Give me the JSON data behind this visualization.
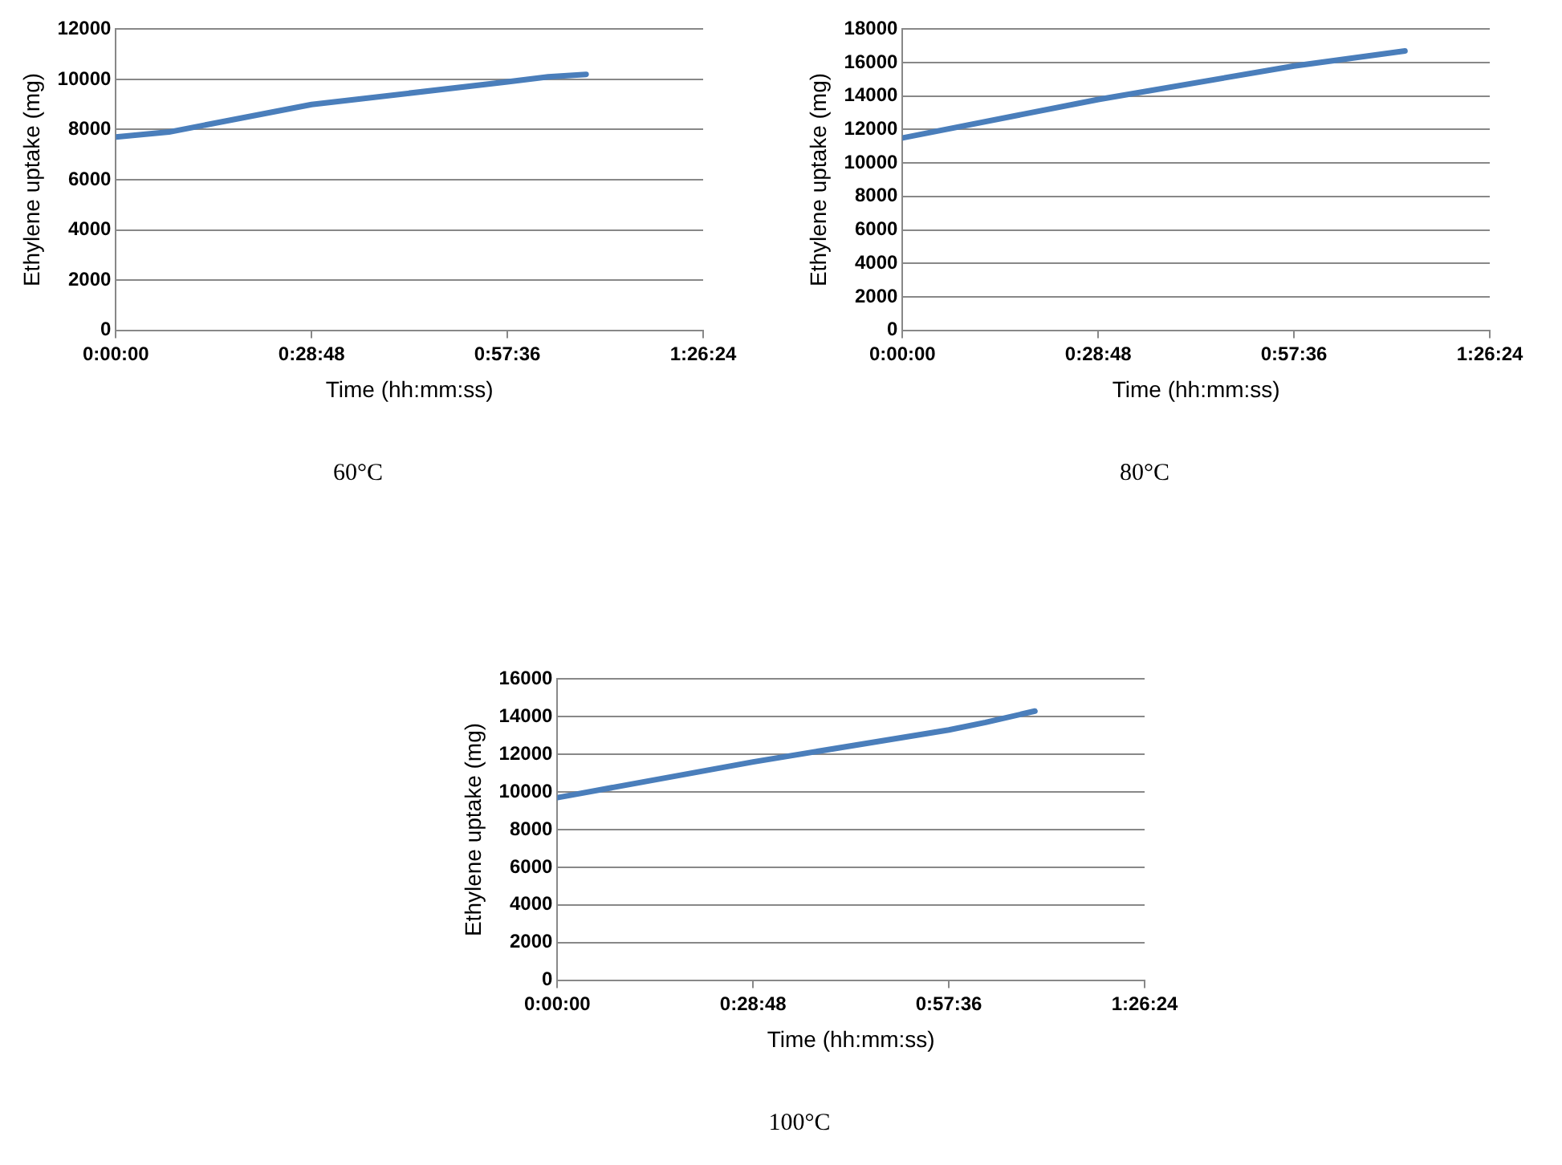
{
  "chart_data": [
    {
      "type": "line",
      "title": "60°C",
      "xlabel": "Time (hh:mm:ss)",
      "ylabel": "Ethylene uptake (mg)",
      "x": [
        0,
        0.13,
        0.48,
        0.96,
        1.06,
        1.153
      ],
      "values": [
        7700,
        7900,
        9000,
        9900,
        10100,
        10200
      ],
      "color": "#4a7ebb",
      "xlim": [
        0,
        1.44
      ],
      "xticks": [
        {
          "value": 0,
          "label": "0:00:00"
        },
        {
          "value": 0.48,
          "label": "0:28:48"
        },
        {
          "value": 0.96,
          "label": "0:57:36"
        },
        {
          "value": 1.44,
          "label": "1:26:24"
        }
      ],
      "ylim": [
        0,
        12000
      ],
      "yticks": [
        0,
        2000,
        4000,
        6000,
        8000,
        10000,
        12000
      ],
      "grid": "y",
      "legend": false,
      "marker": "none",
      "line_style": "solid"
    },
    {
      "type": "line",
      "title": "80°C",
      "xlabel": "Time (hh:mm:ss)",
      "ylabel": "Ethylene uptake (mg)",
      "x": [
        0,
        0.48,
        0.96,
        1.232
      ],
      "values": [
        11500,
        13800,
        15800,
        16700
      ],
      "color": "#4a7ebb",
      "xlim": [
        0,
        1.44
      ],
      "xticks": [
        {
          "value": 0,
          "label": "0:00:00"
        },
        {
          "value": 0.48,
          "label": "0:28:48"
        },
        {
          "value": 0.96,
          "label": "0:57:36"
        },
        {
          "value": 1.44,
          "label": "1:26:24"
        }
      ],
      "ylim": [
        0,
        18000
      ],
      "yticks": [
        0,
        2000,
        4000,
        6000,
        8000,
        10000,
        12000,
        14000,
        16000,
        18000
      ],
      "grid": "y",
      "legend": false,
      "marker": "none",
      "line_style": "solid"
    },
    {
      "type": "line",
      "title": "100°C",
      "xlabel": "Time (hh:mm:ss)",
      "ylabel": "Ethylene uptake (mg)",
      "x": [
        0,
        0.48,
        0.96,
        1.05,
        1.171
      ],
      "values": [
        9700,
        11600,
        13300,
        13700,
        14300
      ],
      "color": "#4a7ebb",
      "xlim": [
        0,
        1.44
      ],
      "xticks": [
        {
          "value": 0,
          "label": "0:00:00"
        },
        {
          "value": 0.48,
          "label": "0:28:48"
        },
        {
          "value": 0.96,
          "label": "0:57:36"
        },
        {
          "value": 1.44,
          "label": "1:26:24"
        }
      ],
      "ylim": [
        0,
        16000
      ],
      "yticks": [
        0,
        2000,
        4000,
        6000,
        8000,
        10000,
        12000,
        14000,
        16000
      ],
      "grid": "y",
      "legend": false,
      "marker": "none",
      "line_style": "solid"
    }
  ]
}
